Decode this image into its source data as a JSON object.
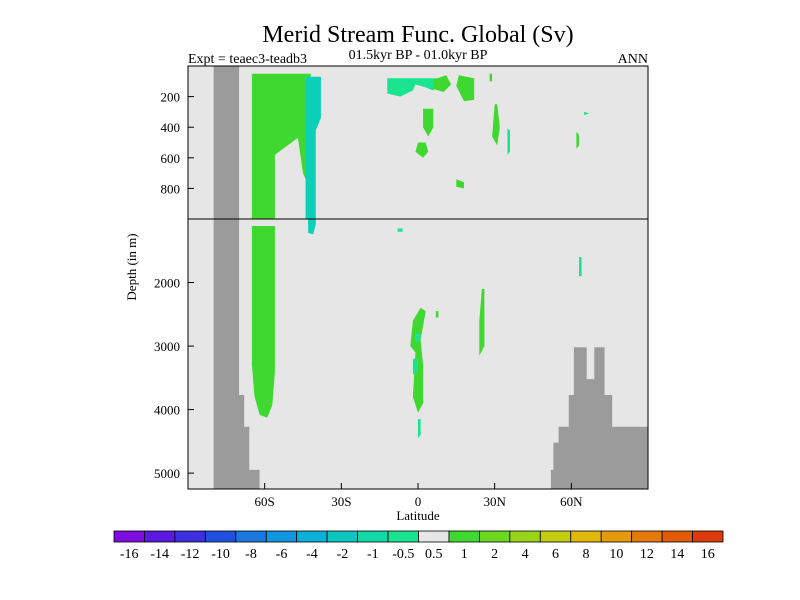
{
  "chart_data": {
    "type": "heatmap",
    "title": "Merid Stream Func. Global (Sv)",
    "subtitle_left": "Expt = teaec3-teadb3",
    "subtitle_center": "01.5kyr BP - 01.0kyr BP",
    "subtitle_right": "ANN",
    "xlabel": "Latitude",
    "ylabel": "Depth (in m)",
    "x_range": [
      -90,
      90
    ],
    "y_upper_range": [
      0,
      1000
    ],
    "y_lower_range": [
      1000,
      5250
    ],
    "x_ticks": [
      {
        "value": -60,
        "label": "60S"
      },
      {
        "value": -30,
        "label": "30S"
      },
      {
        "value": 0,
        "label": "0"
      },
      {
        "value": 30,
        "label": "30N"
      },
      {
        "value": 60,
        "label": "60N"
      }
    ],
    "y_ticks_upper": [
      {
        "value": 200,
        "label": "200"
      },
      {
        "value": 400,
        "label": "400"
      },
      {
        "value": 600,
        "label": "600"
      },
      {
        "value": 800,
        "label": "800"
      }
    ],
    "y_ticks_lower": [
      {
        "value": 2000,
        "label": "2000"
      },
      {
        "value": 3000,
        "label": "3000"
      },
      {
        "value": 4000,
        "label": "4000"
      },
      {
        "value": 5000,
        "label": "5000"
      }
    ],
    "colorbar": {
      "labels": [
        "-16",
        "-14",
        "-12",
        "-10",
        "-8",
        "-6",
        "-4",
        "-2",
        "-1",
        "-0.5",
        "0.5",
        "1",
        "2",
        "4",
        "6",
        "8",
        "10",
        "12",
        "14",
        "16"
      ],
      "colors": [
        "#7f0de0",
        "#5b18e0",
        "#3b2fe0",
        "#2050e0",
        "#1a78e0",
        "#1296e0",
        "#0ab0d8",
        "#0cc4c0",
        "#14d8a8",
        "#1ae490",
        "#e6e6e6",
        "#3ed830",
        "#6cd820",
        "#9ad418",
        "#c4cc10",
        "#e0b80a",
        "#e49a0a",
        "#e47a0a",
        "#e05a08",
        "#dc3a08"
      ]
    },
    "colors": {
      "background": "#e6e6e6",
      "land": "#9b9b9b",
      "positive_1": "#3ed830",
      "negative_1": "#1ae490",
      "negative_2": "#0ccfb8"
    },
    "land_mask": {
      "south": [
        [
          -90,
          5250
        ],
        [
          -80,
          5250
        ],
        [
          -80,
          -60
        ],
        [
          -70,
          -60
        ],
        [
          -70,
          3770
        ],
        [
          -68,
          3770
        ],
        [
          -68,
          4270
        ],
        [
          -66,
          4270
        ],
        [
          -66,
          4950
        ],
        [
          -62,
          4950
        ],
        [
          -62,
          5250
        ]
      ],
      "north": [
        [
          52,
          5250
        ],
        [
          52,
          4950
        ],
        [
          53,
          4950
        ],
        [
          53,
          4520
        ],
        [
          55,
          4520
        ],
        [
          55,
          4270
        ],
        [
          59,
          4270
        ],
        [
          59,
          3770
        ],
        [
          61,
          3770
        ],
        [
          61,
          3020
        ],
        [
          66,
          3020
        ],
        [
          66,
          3520
        ],
        [
          69,
          3520
        ],
        [
          69,
          3020
        ],
        [
          73,
          3020
        ],
        [
          73,
          3770
        ],
        [
          76,
          3770
        ],
        [
          76,
          4270
        ],
        [
          90,
          4270
        ],
        [
          90,
          5250
        ]
      ]
    },
    "regions": [
      {
        "value": 1,
        "points": [
          [
            -65,
            1110
          ],
          [
            -65,
            3300
          ],
          [
            -64,
            3780
          ],
          [
            -62,
            4080
          ],
          [
            -59,
            4130
          ],
          [
            -57,
            3930
          ],
          [
            -56,
            3400
          ],
          [
            -56,
            1110
          ]
        ]
      },
      {
        "value": 1,
        "points": [
          [
            -65,
            50
          ],
          [
            -65,
            1000
          ],
          [
            -56,
            1000
          ],
          [
            -56,
            580
          ],
          [
            -47,
            470
          ],
          [
            -45,
            700
          ],
          [
            -42,
            820
          ],
          [
            -42,
            1000
          ],
          [
            -42,
            50
          ]
        ]
      },
      {
        "value": -2,
        "points": [
          [
            -44,
            70
          ],
          [
            -44,
            1000
          ],
          [
            -40,
            1000
          ],
          [
            -40,
            420
          ],
          [
            -38,
            340
          ],
          [
            -38,
            70
          ]
        ]
      },
      {
        "value": -2,
        "points": [
          [
            -43,
            1000
          ],
          [
            -43,
            1220
          ],
          [
            -41,
            1240
          ],
          [
            -40,
            1080
          ],
          [
            -40,
            1000
          ]
        ]
      },
      {
        "value": -1,
        "points": [
          [
            -12,
            80
          ],
          [
            -12,
            180
          ],
          [
            -7,
            200
          ],
          [
            -2,
            160
          ],
          [
            -1,
            120
          ],
          [
            3,
            140
          ],
          [
            6,
            160
          ],
          [
            8,
            80
          ]
        ]
      },
      {
        "value": 1,
        "points": [
          [
            6,
            90
          ],
          [
            6,
            150
          ],
          [
            10,
            170
          ],
          [
            13,
            120
          ],
          [
            11,
            60
          ]
        ]
      },
      {
        "value": 1,
        "points": [
          [
            16,
            60
          ],
          [
            15,
            130
          ],
          [
            18,
            230
          ],
          [
            22,
            220
          ],
          [
            22,
            80
          ]
        ]
      },
      {
        "value": 1,
        "points": [
          [
            2,
            280
          ],
          [
            2,
            400
          ],
          [
            4,
            460
          ],
          [
            6,
            400
          ],
          [
            6,
            280
          ]
        ]
      },
      {
        "value": 1,
        "points": [
          [
            0,
            500
          ],
          [
            -1,
            560
          ],
          [
            2,
            600
          ],
          [
            4,
            560
          ],
          [
            3,
            500
          ]
        ]
      },
      {
        "value": 1,
        "points": [
          [
            -2,
            2600
          ],
          [
            -3,
            3000
          ],
          [
            -1,
            3100
          ],
          [
            -2,
            3800
          ],
          [
            0,
            4050
          ],
          [
            2,
            3900
          ],
          [
            2,
            3300
          ],
          [
            1,
            2900
          ],
          [
            3,
            2450
          ],
          [
            1,
            2400
          ]
        ]
      },
      {
        "value": 1,
        "points": [
          [
            15,
            740
          ],
          [
            15,
            790
          ],
          [
            18,
            800
          ],
          [
            18,
            760
          ]
        ]
      },
      {
        "value": 1,
        "points": [
          [
            25,
            2100
          ],
          [
            24,
            2600
          ],
          [
            24,
            3150
          ],
          [
            26,
            3000
          ],
          [
            26,
            2100
          ]
        ]
      },
      {
        "value": 1,
        "points": [
          [
            30,
            250
          ],
          [
            29,
            460
          ],
          [
            31,
            520
          ],
          [
            32,
            400
          ],
          [
            31,
            250
          ]
        ]
      },
      {
        "value": -1,
        "points": [
          [
            35,
            410
          ],
          [
            35,
            580
          ],
          [
            36,
            560
          ],
          [
            36,
            420
          ]
        ]
      },
      {
        "value": 1,
        "points": [
          [
            62,
            430
          ],
          [
            62,
            540
          ],
          [
            63,
            520
          ],
          [
            63,
            450
          ]
        ]
      },
      {
        "value": -1,
        "points": [
          [
            65,
            300
          ],
          [
            65,
            320
          ],
          [
            67,
            310
          ]
        ]
      },
      {
        "value": -1,
        "points": [
          [
            -8,
            1150
          ],
          [
            -8,
            1200
          ],
          [
            -6,
            1200
          ],
          [
            -6,
            1150
          ]
        ]
      },
      {
        "value": -1,
        "points": [
          [
            -2,
            3200
          ],
          [
            -2,
            3450
          ],
          [
            0,
            3400
          ],
          [
            0,
            3200
          ]
        ]
      },
      {
        "value": -1,
        "points": [
          [
            0,
            4150
          ],
          [
            0,
            4450
          ],
          [
            1,
            4400
          ],
          [
            1,
            4150
          ]
        ]
      },
      {
        "value": -1,
        "points": [
          [
            -1,
            2800
          ],
          [
            -1,
            2950
          ],
          [
            1,
            2900
          ],
          [
            1,
            2800
          ]
        ]
      },
      {
        "value": 1,
        "points": [
          [
            7,
            2450
          ],
          [
            7,
            2550
          ],
          [
            8,
            2550
          ],
          [
            8,
            2450
          ]
        ]
      },
      {
        "value": 1,
        "points": [
          [
            28,
            50
          ],
          [
            28,
            100
          ],
          [
            29,
            100
          ],
          [
            29,
            50
          ]
        ]
      },
      {
        "value": -1,
        "points": [
          [
            63,
            1600
          ],
          [
            63,
            1900
          ],
          [
            64,
            1900
          ],
          [
            64,
            1600
          ]
        ]
      }
    ]
  }
}
